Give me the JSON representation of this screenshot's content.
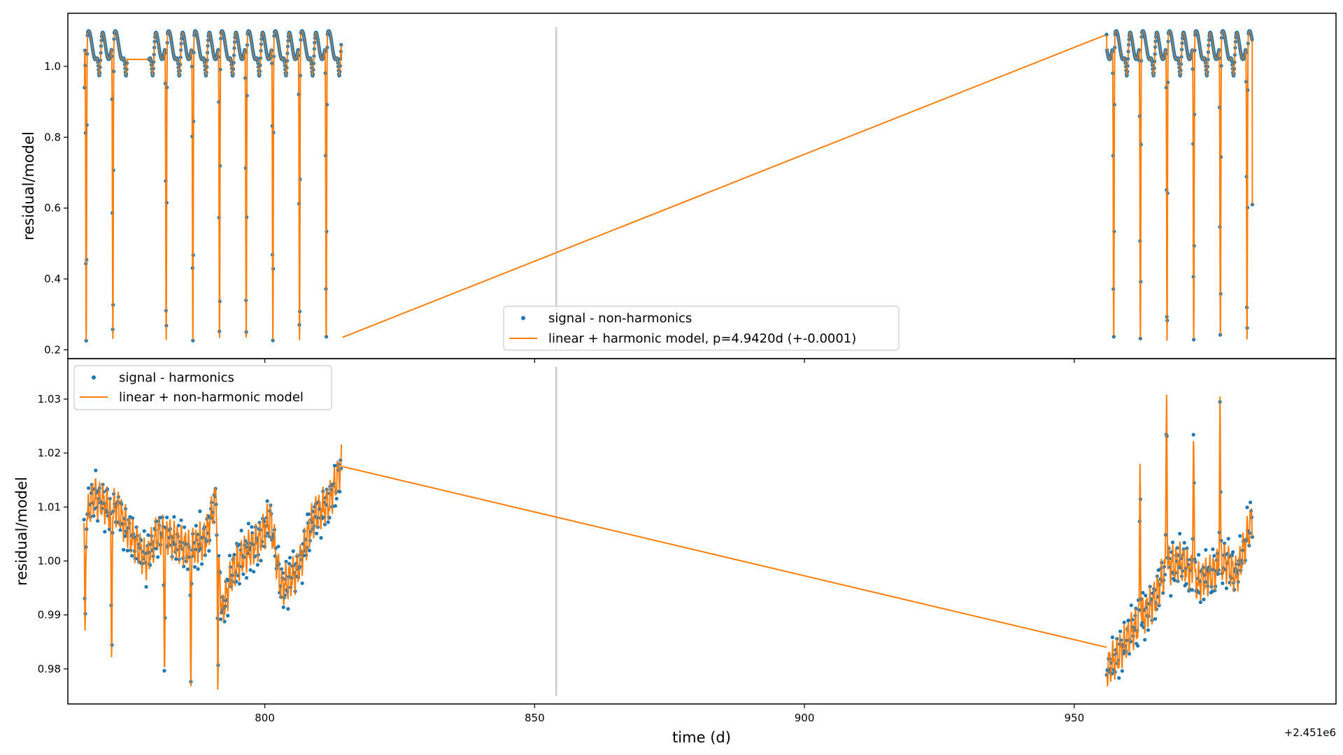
{
  "figure": {
    "x_offset_label": "+2.451e6",
    "xlabel": "time (d)"
  },
  "chart_data": [
    {
      "type": "scatter",
      "panel": "top",
      "ylabel": "residual/model",
      "xlim": [
        763.5,
        998.5
      ],
      "ylim": [
        0.175,
        1.15
      ],
      "xticks": [
        800,
        850,
        900,
        950
      ],
      "yticks": [
        0.2,
        0.4,
        0.6,
        0.8,
        1.0
      ],
      "ytick_labels": [
        "0.2",
        "0.4",
        "0.6",
        "0.8",
        "1.0"
      ],
      "vline": {
        "x": 854,
        "y_range": [
          0.2,
          1.11
        ]
      },
      "legend": {
        "placement": "lower center"
      },
      "series": [
        {
          "name": "signal - non-harmonics",
          "kind": "points",
          "color": "#1f77b4"
        },
        {
          "name": "linear + harmonic model, p=4.9420d (+-0.0001)",
          "kind": "line",
          "color": "#ff7f0e"
        }
      ],
      "model": {
        "period_d": 4.942,
        "baseline": 1.06,
        "eclipse_depth_primary": 0.85,
        "eclipse_depth_secondary": 0.1,
        "segments": [
          {
            "x_start": 766.6,
            "x_end": 814.2,
            "eclipse_phase_x": 766.9,
            "first_value": 0.94,
            "last_value": 1.02
          },
          {
            "x_start": 956.0,
            "x_end": 983.0,
            "eclipse_phase_x": 962.25,
            "first_value": 1.09,
            "last_value": 0.61
          }
        ],
        "bridge_line": [
          [
            814.4,
            0.235
          ],
          [
            956.0,
            1.09
          ]
        ]
      }
    },
    {
      "type": "scatter",
      "panel": "bottom",
      "ylabel": "residual/model",
      "xlim": [
        763.5,
        998.5
      ],
      "ylim": [
        0.9735,
        1.0375
      ],
      "xticks": [
        800,
        850,
        900,
        950
      ],
      "xtick_labels": [
        "800",
        "850",
        "900",
        "950"
      ],
      "yticks": [
        0.98,
        0.99,
        1.0,
        1.01,
        1.02,
        1.03
      ],
      "ytick_labels": [
        "0.98",
        "0.99",
        "1.00",
        "1.01",
        "1.02",
        "1.03"
      ],
      "vline": {
        "x": 854,
        "y_range": [
          0.975,
          1.036
        ]
      },
      "legend": {
        "placement": "upper left"
      },
      "series": [
        {
          "name": "signal - harmonics",
          "kind": "points",
          "color": "#1f77b4"
        },
        {
          "name": "linear + non-harmonic model",
          "kind": "line",
          "color": "#ff7f0e"
        }
      ],
      "trend_knots": {
        "segment_1": [
          [
            766.5,
            1.005
          ],
          [
            768.0,
            1.012
          ],
          [
            770.0,
            1.011
          ],
          [
            771.5,
            1.009
          ],
          [
            772.5,
            1.01
          ],
          [
            774.5,
            1.006
          ],
          [
            778.0,
            1.0
          ],
          [
            780.0,
            1.005
          ],
          [
            783.0,
            1.004
          ],
          [
            786.0,
            1.002
          ],
          [
            789.0,
            1.004
          ],
          [
            791.0,
            1.012
          ],
          [
            792.0,
            0.99
          ],
          [
            794.0,
            0.998
          ],
          [
            796.0,
            1.001
          ],
          [
            799.0,
            1.004
          ],
          [
            801.0,
            1.008
          ],
          [
            803.0,
            0.995
          ],
          [
            806.0,
            0.998
          ],
          [
            809.0,
            1.008
          ],
          [
            812.0,
            1.011
          ],
          [
            814.2,
            1.018
          ]
        ],
        "dips_1": [
          [
            766.7,
            0.986
          ],
          [
            771.6,
            0.982
          ],
          [
            781.4,
            0.981
          ],
          [
            786.3,
            0.98
          ],
          [
            791.3,
            0.976
          ]
        ],
        "segment_2": [
          [
            956.0,
            0.98
          ],
          [
            958.5,
            0.983
          ],
          [
            960.0,
            0.986
          ],
          [
            963.0,
            0.99
          ],
          [
            965.0,
            0.993
          ],
          [
            967.0,
            0.999
          ],
          [
            970.0,
            1.0
          ],
          [
            973.0,
            0.996
          ],
          [
            976.0,
            0.998
          ],
          [
            978.0,
            1.0
          ],
          [
            980.0,
            0.997
          ],
          [
            983.0,
            1.008
          ]
        ],
        "spikes_2": [
          [
            962.2,
            1.018
          ],
          [
            967.1,
            1.034
          ],
          [
            972.1,
            1.026
          ],
          [
            977.0,
            1.029
          ]
        ],
        "bridge_line": [
          [
            814.4,
            1.0175
          ],
          [
            956.0,
            0.984
          ]
        ]
      }
    }
  ]
}
